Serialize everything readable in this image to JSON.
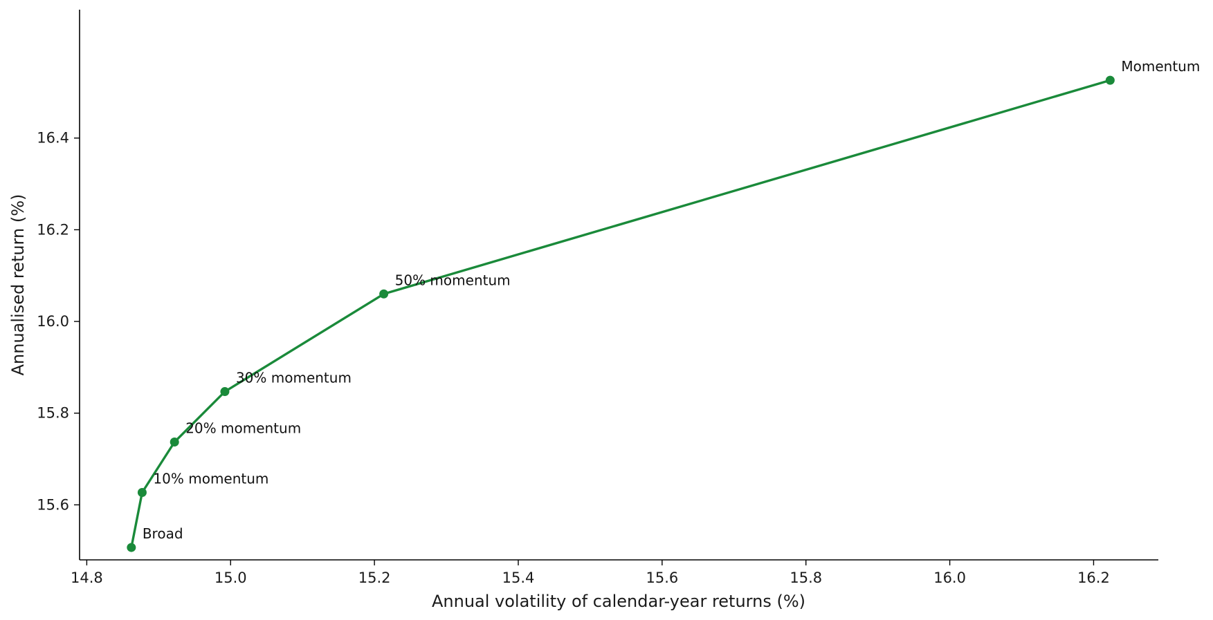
{
  "chart_data": {
    "type": "line",
    "title": "",
    "xlabel": "Annual volatility of calendar-year returns (%)",
    "ylabel": "Annualised return (%)",
    "xlim": [
      14.79,
      16.29
    ],
    "ylim": [
      15.48,
      16.68
    ],
    "xticks": [
      14.8,
      15.0,
      15.2,
      15.4,
      15.6,
      15.8,
      16.0,
      16.2
    ],
    "yticks": [
      15.6,
      15.8,
      16.0,
      16.2,
      16.4
    ],
    "xtick_labels": [
      "14.8",
      "15.0",
      "15.2",
      "15.4",
      "15.6",
      "15.8",
      "16.0",
      "16.2"
    ],
    "ytick_labels": [
      "15.6",
      "15.8",
      "16.0",
      "16.2",
      "16.4"
    ],
    "grid": false,
    "line_color": "#1a8a3a",
    "series": [
      {
        "points": [
          {
            "label": "Broad",
            "x": 14.862,
            "y": 15.507
          },
          {
            "label": "10% momentum",
            "x": 14.877,
            "y": 15.627
          },
          {
            "label": "20% momentum",
            "x": 14.922,
            "y": 15.737
          },
          {
            "label": "30% momentum",
            "x": 14.992,
            "y": 15.847
          },
          {
            "label": "50% momentum",
            "x": 15.213,
            "y": 16.06
          },
          {
            "label": "Momentum",
            "x": 16.223,
            "y": 16.526
          }
        ]
      }
    ]
  }
}
